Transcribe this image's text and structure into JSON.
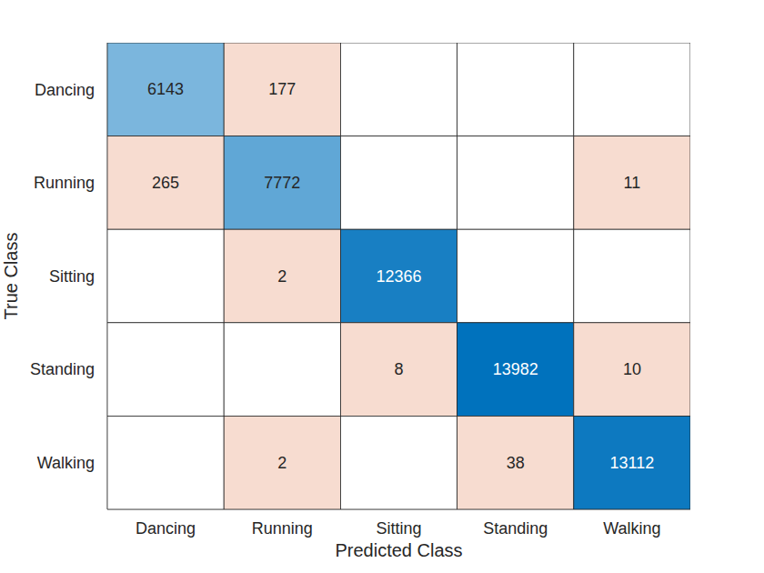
{
  "chart_data": {
    "type": "heatmap",
    "x_label": "Predicted Class",
    "y_label": "True Class",
    "categories": [
      "Dancing",
      "Running",
      "Sitting",
      "Standing",
      "Walking"
    ],
    "cells": [
      [
        6143,
        177,
        null,
        null,
        null
      ],
      [
        265,
        7772,
        null,
        null,
        11
      ],
      [
        null,
        2,
        12366,
        null,
        null
      ],
      [
        null,
        null,
        8,
        13982,
        10
      ],
      [
        null,
        2,
        null,
        38,
        13112
      ]
    ],
    "data_labels": true
  }
}
